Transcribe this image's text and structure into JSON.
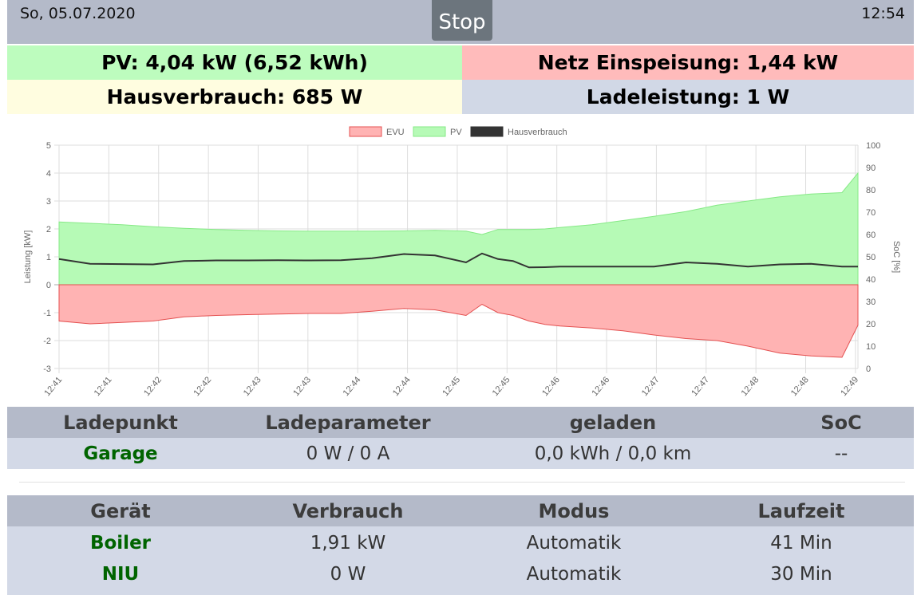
{
  "header": {
    "date": "So, 05.07.2020",
    "time": "12:54",
    "stop_label": "Stop"
  },
  "tiles": {
    "pv": "PV: 4,04 kW (6,52 kWh)",
    "netz": "Netz Einspeisung: 1,44 kW",
    "hausverbrauch": "Hausverbrauch: 685 W",
    "ladeleistung": "Ladeleistung: 1 W"
  },
  "colors": {
    "pv_tile": "#bdfcbe",
    "netz_tile": "#ffbbbb",
    "haus_tile": "#fffde0",
    "lade_tile": "#d1d8e6",
    "header_bg": "#b4bac9",
    "name_green": "#006400"
  },
  "chart_data": {
    "type": "area",
    "legend": [
      "EVU",
      "PV",
      "Hausverbrauch"
    ],
    "legend_position": "top-center",
    "ylabel": "Leistung [kW]",
    "y2label": "SoC [%]",
    "ylim": [
      -3,
      5
    ],
    "y2lim": [
      0,
      100
    ],
    "yticks": [
      "5",
      "4",
      "3",
      "2",
      "1",
      "0",
      "-1",
      "-2",
      "-3"
    ],
    "y2ticks": [
      "100",
      "90",
      "80",
      "70",
      "60",
      "50",
      "40",
      "30",
      "20",
      "10",
      "0"
    ],
    "xticks": [
      "12:41",
      "12:41",
      "12:42",
      "12:42",
      "12:43",
      "12:43",
      "12:44",
      "12:44",
      "12:45",
      "12:45",
      "12:46",
      "12:46",
      "12:47",
      "12:47",
      "12:48",
      "12:48",
      "12:49"
    ],
    "grid": true,
    "x_minutes": [
      0,
      0.33,
      0.67,
      1,
      1.33,
      1.67,
      2,
      2.33,
      2.67,
      3,
      3.33,
      3.67,
      4,
      4.33,
      4.5,
      4.67,
      4.83,
      5,
      5.17,
      5.33,
      5.67,
      6,
      6.33,
      6.67,
      7,
      7.33,
      7.67,
      8,
      8.33,
      8.5
    ],
    "series": [
      {
        "name": "PV",
        "color": "#b6fab6",
        "values": [
          2.25,
          2.2,
          2.15,
          2.08,
          2.02,
          1.98,
          1.95,
          1.93,
          1.92,
          1.92,
          1.92,
          1.93,
          1.95,
          1.92,
          1.8,
          1.98,
          1.98,
          1.98,
          2.0,
          2.05,
          2.15,
          2.3,
          2.45,
          2.62,
          2.85,
          3.0,
          3.15,
          3.25,
          3.3,
          4.0
        ]
      },
      {
        "name": "EVU",
        "color": "#ffb3b3",
        "values": [
          -1.3,
          -1.4,
          -1.35,
          -1.3,
          -1.15,
          -1.1,
          -1.07,
          -1.05,
          -1.03,
          -1.03,
          -0.95,
          -0.85,
          -0.9,
          -1.1,
          -0.7,
          -1.0,
          -1.1,
          -1.3,
          -1.42,
          -1.48,
          -1.55,
          -1.65,
          -1.8,
          -1.93,
          -2.0,
          -2.2,
          -2.45,
          -2.55,
          -2.6,
          -1.45
        ]
      },
      {
        "name": "Hausverbrauch",
        "color": "#333333",
        "values": [
          0.92,
          0.75,
          0.74,
          0.73,
          0.85,
          0.87,
          0.87,
          0.88,
          0.87,
          0.88,
          0.95,
          1.1,
          1.05,
          0.8,
          1.12,
          0.92,
          0.85,
          0.62,
          0.63,
          0.65,
          0.65,
          0.65,
          0.65,
          0.8,
          0.75,
          0.65,
          0.73,
          0.75,
          0.65,
          0.65
        ]
      }
    ]
  },
  "ladepunkt_table": {
    "headers": [
      "Ladepunkt",
      "Ladeparameter",
      "geladen",
      "SoC"
    ],
    "rows": [
      [
        "Garage",
        "0 W / 0 A",
        "0,0 kWh / 0,0 km",
        "--"
      ]
    ]
  },
  "geraete_table": {
    "headers": [
      "Gerät",
      "Verbrauch",
      "Modus",
      "Laufzeit"
    ],
    "rows": [
      [
        "Boiler",
        "1,91 kW",
        "Automatik",
        "41 Min"
      ],
      [
        "NIU",
        "0 W",
        "Automatik",
        "30 Min"
      ]
    ]
  }
}
